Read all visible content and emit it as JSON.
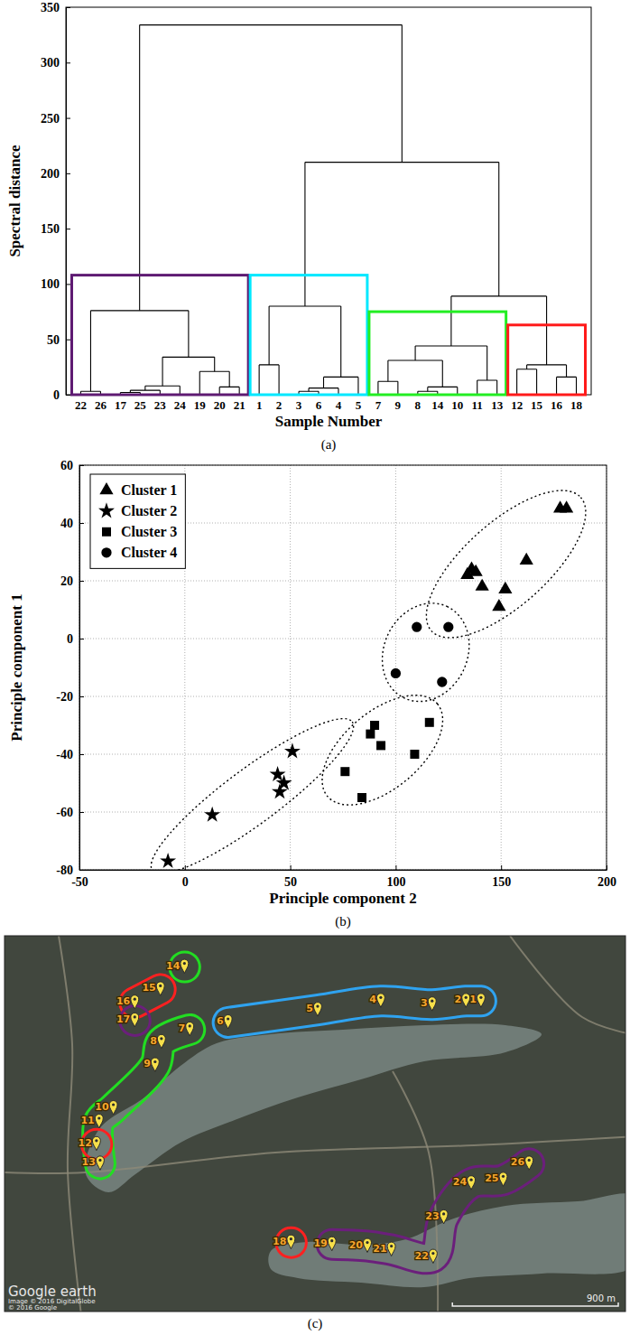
{
  "chart_data": [
    {
      "type": "dendrogram",
      "caption": "(a)",
      "y_label": "Spectral distance",
      "x_label": "Sample Number",
      "ylim": [
        0,
        350
      ],
      "yticks": [
        0,
        50,
        100,
        150,
        200,
        250,
        300,
        350
      ],
      "tree": {
        "height": 334,
        "children": [
          {
            "height": 76,
            "children": [
              {
                "height": 3,
                "children": [
                  {
                    "label": "22"
                  },
                  {
                    "label": "26"
                  }
                ]
              },
              {
                "height": 34,
                "children": [
                  {
                    "height": 8,
                    "children": [
                      {
                        "height": 4,
                        "children": [
                          {
                            "height": 2,
                            "children": [
                              {
                                "label": "17"
                              },
                              {
                                "label": "25"
                              }
                            ]
                          },
                          {
                            "label": "23"
                          }
                        ]
                      },
                      {
                        "label": "24"
                      }
                    ]
                  },
                  {
                    "height": 21,
                    "children": [
                      {
                        "label": "19"
                      },
                      {
                        "height": 7,
                        "children": [
                          {
                            "label": "20"
                          },
                          {
                            "label": "21"
                          }
                        ]
                      }
                    ]
                  }
                ]
              }
            ]
          },
          {
            "height": 210,
            "children": [
              {
                "height": 80,
                "children": [
                  {
                    "height": 27,
                    "children": [
                      {
                        "label": "1"
                      },
                      {
                        "label": "2"
                      }
                    ]
                  },
                  {
                    "height": 16,
                    "children": [
                      {
                        "height": 6,
                        "children": [
                          {
                            "height": 3,
                            "children": [
                              {
                                "label": "3"
                              },
                              {
                                "label": "6"
                              }
                            ]
                          },
                          {
                            "label": "4"
                          }
                        ]
                      },
                      {
                        "label": "5"
                      }
                    ]
                  }
                ]
              },
              {
                "height": 89,
                "children": [
                  {
                    "height": 44,
                    "children": [
                      {
                        "height": 31,
                        "children": [
                          {
                            "height": 12,
                            "children": [
                              {
                                "label": "7"
                              },
                              {
                                "label": "9"
                              }
                            ]
                          },
                          {
                            "height": 7,
                            "children": [
                              {
                                "height": 3,
                                "children": [
                                  {
                                    "label": "8"
                                  },
                                  {
                                    "label": "14"
                                  }
                                ]
                              },
                              {
                                "label": "10"
                              }
                            ]
                          }
                        ]
                      },
                      {
                        "height": 13,
                        "children": [
                          {
                            "label": "11"
                          },
                          {
                            "label": "13"
                          }
                        ]
                      }
                    ]
                  },
                  {
                    "height": 27,
                    "children": [
                      {
                        "height": 23,
                        "children": [
                          {
                            "label": "12"
                          },
                          {
                            "label": "15"
                          }
                        ]
                      },
                      {
                        "height": 16,
                        "children": [
                          {
                            "label": "16"
                          },
                          {
                            "label": "18"
                          }
                        ]
                      }
                    ]
                  }
                ]
              }
            ]
          }
        ]
      },
      "clusters": [
        {
          "color": "#5e1a72",
          "from": "22",
          "to": "21",
          "height": 108
        },
        {
          "color": "#00e8ff",
          "from": "1",
          "to": "5",
          "height": 108
        },
        {
          "color": "#22ee22",
          "from": "7",
          "to": "13",
          "height": 75
        },
        {
          "color": "#ff1a1a",
          "from": "12",
          "to": "18",
          "height": 63
        }
      ]
    },
    {
      "type": "scatter",
      "caption": "(b)",
      "x_label": "Principle component 2",
      "y_label": "Principle component 1",
      "xlim": [
        -50,
        200
      ],
      "xticks": [
        -50,
        0,
        50,
        100,
        150,
        200
      ],
      "ylim": [
        -80,
        60
      ],
      "yticks": [
        -80,
        -60,
        -40,
        -20,
        0,
        20,
        40,
        60
      ],
      "grid": true,
      "legend": "top-left",
      "series": [
        {
          "name": "Cluster 1",
          "marker": "triangle",
          "color": "#000000",
          "x": [
            134,
            136,
            138,
            141,
            149,
            152,
            162,
            178,
            181
          ],
          "values": [
            22,
            24,
            23,
            18,
            11,
            17,
            27,
            45,
            45
          ]
        },
        {
          "name": "Cluster 2",
          "marker": "star",
          "color": "#000000",
          "x": [
            -8,
            13,
            44,
            45,
            47,
            51
          ],
          "values": [
            -77,
            -61,
            -47,
            -53,
            -50,
            -39
          ]
        },
        {
          "name": "Cluster 3",
          "marker": "square",
          "color": "#000000",
          "x": [
            76,
            84,
            88,
            90,
            93,
            109,
            116
          ],
          "values": [
            -46,
            -55,
            -33,
            -30,
            -37,
            -40,
            -29
          ]
        },
        {
          "name": "Cluster 4",
          "marker": "circle",
          "color": "#000000",
          "x": [
            100,
            110,
            122,
            125
          ],
          "values": [
            -12,
            4,
            -15,
            4
          ]
        }
      ]
    },
    {
      "type": "map",
      "caption": "(c)",
      "extent": {
        "lon": [
          79.845,
          79.875
        ],
        "lat": [
          6.9167,
          6.935
        ]
      },
      "markers": [
        {
          "label": "1",
          "lon": 79.86815,
          "lat": 6.93151
        },
        {
          "label": "2",
          "lon": 79.86741,
          "lat": 6.93151
        },
        {
          "label": "3",
          "lon": 79.86575,
          "lat": 6.93134
        },
        {
          "label": "4",
          "lon": 79.86323,
          "lat": 6.93151
        },
        {
          "label": "5",
          "lon": 79.86013,
          "lat": 6.93108
        },
        {
          "label": "6",
          "lon": 79.85573,
          "lat": 6.93047
        },
        {
          "label": "7",
          "lon": 79.85385,
          "lat": 6.93012
        },
        {
          "label": "8",
          "lon": 79.85246,
          "lat": 6.92951
        },
        {
          "label": "9",
          "lon": 79.85215,
          "lat": 6.92838
        },
        {
          "label": "10",
          "lon": 79.8501,
          "lat": 6.92629
        },
        {
          "label": "11",
          "lon": 79.8494,
          "lat": 6.92563
        },
        {
          "label": "12",
          "lon": 79.84927,
          "lat": 6.92454
        },
        {
          "label": "13",
          "lon": 79.84945,
          "lat": 6.92359
        },
        {
          "label": "14",
          "lon": 79.85359,
          "lat": 6.93317
        },
        {
          "label": "15",
          "lon": 79.85241,
          "lat": 6.93208
        },
        {
          "label": "16",
          "lon": 79.85115,
          "lat": 6.93143
        },
        {
          "label": "17",
          "lon": 79.85115,
          "lat": 6.93056
        },
        {
          "label": "18",
          "lon": 79.85882,
          "lat": 6.91975
        },
        {
          "label": "19",
          "lon": 79.86083,
          "lat": 6.91966
        },
        {
          "label": "20",
          "lon": 79.86257,
          "lat": 6.91958
        },
        {
          "label": "21",
          "lon": 79.86375,
          "lat": 6.9194
        },
        {
          "label": "22",
          "lon": 79.8658,
          "lat": 6.91905
        },
        {
          "label": "23",
          "lon": 79.86632,
          "lat": 6.92097
        },
        {
          "label": "24",
          "lon": 79.86767,
          "lat": 6.92263
        },
        {
          "label": "25",
          "lon": 79.86924,
          "lat": 6.9228
        },
        {
          "label": "26",
          "lon": 79.87051,
          "lat": 6.92359
        }
      ],
      "outlines": [
        {
          "color": "#2fa3f0",
          "markers": [
            "6",
            "5",
            "4",
            "3",
            "2",
            "1"
          ]
        },
        {
          "color": "#22dd22",
          "markers": [
            "7",
            "8",
            "9",
            "10",
            "11",
            "13"
          ]
        },
        {
          "color": "#22dd22",
          "markers": [
            "14"
          ]
        },
        {
          "color": "#ff2020",
          "markers": [
            "15",
            "16"
          ]
        },
        {
          "color": "#ff2020",
          "markers": [
            "12"
          ]
        },
        {
          "color": "#ff2020",
          "markers": [
            "18"
          ]
        },
        {
          "color": "#6b1f7b",
          "markers": [
            "17"
          ]
        },
        {
          "color": "#6b1f7b",
          "markers": [
            "19",
            "20",
            "21",
            "22",
            "23",
            "24",
            "25",
            "26"
          ]
        }
      ],
      "scale_bar": {
        "label": "900 m",
        "meters": 900
      },
      "credits": [
        "Google earth",
        "Image © 2016 DigitalGlobe",
        "© 2016 Google"
      ]
    }
  ]
}
